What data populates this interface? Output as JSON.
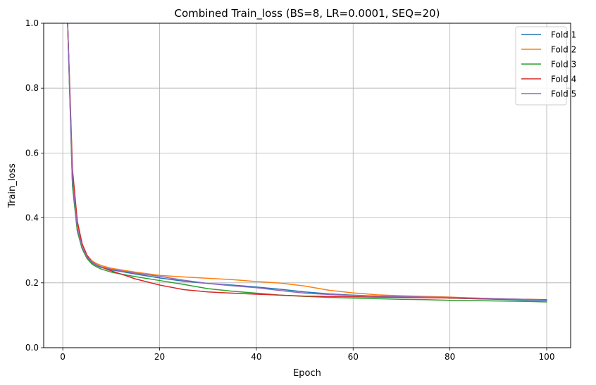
{
  "chart_data": {
    "type": "line",
    "title": "Combined Train_loss (BS=8, LR=0.0001, SEQ=20)",
    "xlabel": "Epoch",
    "ylabel": "Train_loss",
    "xlim": [
      -3.95,
      104.95
    ],
    "ylim": [
      0,
      1
    ],
    "xticks": [
      0,
      20,
      40,
      60,
      80,
      100
    ],
    "yticks": [
      0.0,
      0.2,
      0.4,
      0.6,
      0.8,
      1.0
    ],
    "xtick_labels": [
      "0",
      "20",
      "40",
      "60",
      "80",
      "100"
    ],
    "ytick_labels": [
      "0.0",
      "0.2",
      "0.4",
      "0.6",
      "0.8",
      "1.0"
    ],
    "grid": true,
    "legend": "top-right",
    "series": [
      {
        "name": "Fold 1",
        "color": "#1f77b4",
        "x": [
          1,
          2,
          3,
          4,
          5,
          6,
          7,
          8,
          10,
          12,
          15,
          20,
          25,
          30,
          35,
          40,
          45,
          50,
          55,
          60,
          65,
          70,
          75,
          80,
          85,
          90,
          95,
          100
        ],
        "y": [
          1.0,
          0.5,
          0.36,
          0.305,
          0.277,
          0.262,
          0.253,
          0.247,
          0.24,
          0.235,
          0.227,
          0.215,
          0.205,
          0.198,
          0.193,
          0.187,
          0.18,
          0.172,
          0.166,
          0.162,
          0.159,
          0.157,
          0.155,
          0.153,
          0.151,
          0.149,
          0.147,
          0.145
        ]
      },
      {
        "name": "Fold 2",
        "color": "#ff7f0e",
        "x": [
          1,
          2,
          3,
          4,
          5,
          6,
          7,
          8,
          10,
          12,
          15,
          20,
          25,
          30,
          35,
          40,
          45,
          50,
          55,
          60,
          65,
          70,
          75,
          80,
          85,
          90,
          95,
          100
        ],
        "y": [
          1.0,
          0.54,
          0.385,
          0.32,
          0.285,
          0.268,
          0.259,
          0.253,
          0.245,
          0.24,
          0.233,
          0.223,
          0.218,
          0.214,
          0.21,
          0.204,
          0.199,
          0.19,
          0.177,
          0.169,
          0.163,
          0.16,
          0.158,
          0.156,
          0.153,
          0.151,
          0.149,
          0.148
        ]
      },
      {
        "name": "Fold 3",
        "color": "#2ca02c",
        "x": [
          1,
          2,
          3,
          4,
          5,
          6,
          7,
          8,
          10,
          12,
          15,
          20,
          25,
          30,
          35,
          40,
          45,
          50,
          55,
          60,
          65,
          70,
          75,
          80,
          85,
          90,
          95,
          100
        ],
        "y": [
          1.0,
          0.5,
          0.36,
          0.305,
          0.275,
          0.258,
          0.249,
          0.242,
          0.233,
          0.227,
          0.219,
          0.207,
          0.195,
          0.182,
          0.174,
          0.168,
          0.162,
          0.158,
          0.155,
          0.153,
          0.151,
          0.149,
          0.148,
          0.146,
          0.145,
          0.144,
          0.143,
          0.141
        ]
      },
      {
        "name": "Fold 4",
        "color": "#d62728",
        "x": [
          1,
          2,
          3,
          4,
          5,
          6,
          7,
          8,
          10,
          12,
          15,
          20,
          25,
          30,
          35,
          40,
          45,
          50,
          55,
          60,
          65,
          70,
          75,
          80,
          85,
          90,
          95,
          100
        ],
        "y": [
          1.0,
          0.55,
          0.39,
          0.32,
          0.285,
          0.265,
          0.255,
          0.248,
          0.237,
          0.227,
          0.212,
          0.193,
          0.179,
          0.172,
          0.168,
          0.165,
          0.162,
          0.159,
          0.158,
          0.157,
          0.156,
          0.155,
          0.154,
          0.153,
          0.151,
          0.15,
          0.149,
          0.148
        ]
      },
      {
        "name": "Fold 5",
        "color": "#9467bd",
        "x": [
          1,
          2,
          3,
          4,
          5,
          6,
          7,
          8,
          10,
          12,
          15,
          20,
          25,
          30,
          35,
          40,
          45,
          50,
          55,
          60,
          65,
          70,
          75,
          80,
          85,
          90,
          95,
          100
        ],
        "y": [
          1.0,
          0.52,
          0.37,
          0.31,
          0.28,
          0.264,
          0.255,
          0.249,
          0.242,
          0.237,
          0.23,
          0.22,
          0.208,
          0.198,
          0.191,
          0.185,
          0.176,
          0.168,
          0.164,
          0.161,
          0.159,
          0.158,
          0.156,
          0.155,
          0.153,
          0.151,
          0.149,
          0.147
        ]
      }
    ]
  }
}
